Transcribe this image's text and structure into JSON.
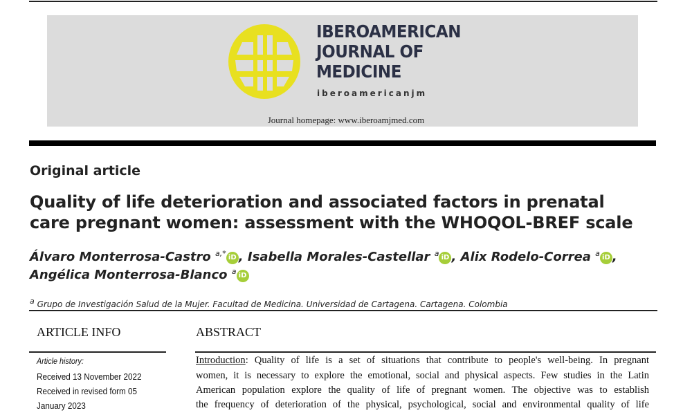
{
  "journal": {
    "name_lines": [
      "IBEROAMERICAN",
      "JOURNAL OF",
      "MEDICINE"
    ],
    "handle": "iberoamericanjm",
    "homepage": "Journal homepage: www.iberoamjmed.com",
    "logo_color": "#e8e020",
    "icon": "globe-icon"
  },
  "article": {
    "type": "Original article",
    "title_lines": [
      "Quality of life deterioration and associated factors in prenatal",
      "care pregnant women: assessment with the WHOQOL-BREF scale"
    ],
    "authors": [
      {
        "name": "Álvaro Monterrosa-Castro",
        "sup": "a,*",
        "suffix": ","
      },
      {
        "name": "Isabella Morales-Castellar",
        "sup": "a",
        "suffix": ","
      },
      {
        "name": "Alix Rodelo-Correa",
        "sup": "a",
        "suffix": ","
      },
      {
        "name": "Angélica Monterrosa-Blanco",
        "sup": "a",
        "suffix": ""
      }
    ],
    "orcid_label": "iD",
    "affiliation_sup": "a",
    "affiliation": "Grupo de Investigación Salud de la Mujer. Facultad de Medicina. Universidad de Cartagena. Cartagena. Colombia"
  },
  "info": {
    "heading": "ARTICLE INFO",
    "history_label": "Article history:",
    "history": [
      "Received 13 November 2022",
      "Received in revised form 05",
      "January 2023"
    ]
  },
  "abstract": {
    "heading": "ABSTRACT",
    "intro_label": "Introduction",
    "lines": [
      ": Quality of life is a set of situations that contribute to people's well-being. In pregnant",
      "women, it is necessary to explore the emotional, social and physical aspects. Few studies in the Latin",
      "American population explore the quality of life of pregnant women. The objective was to establish",
      "the frequency of deterioration of the physical, psychological, social and environmental quality of life"
    ]
  }
}
